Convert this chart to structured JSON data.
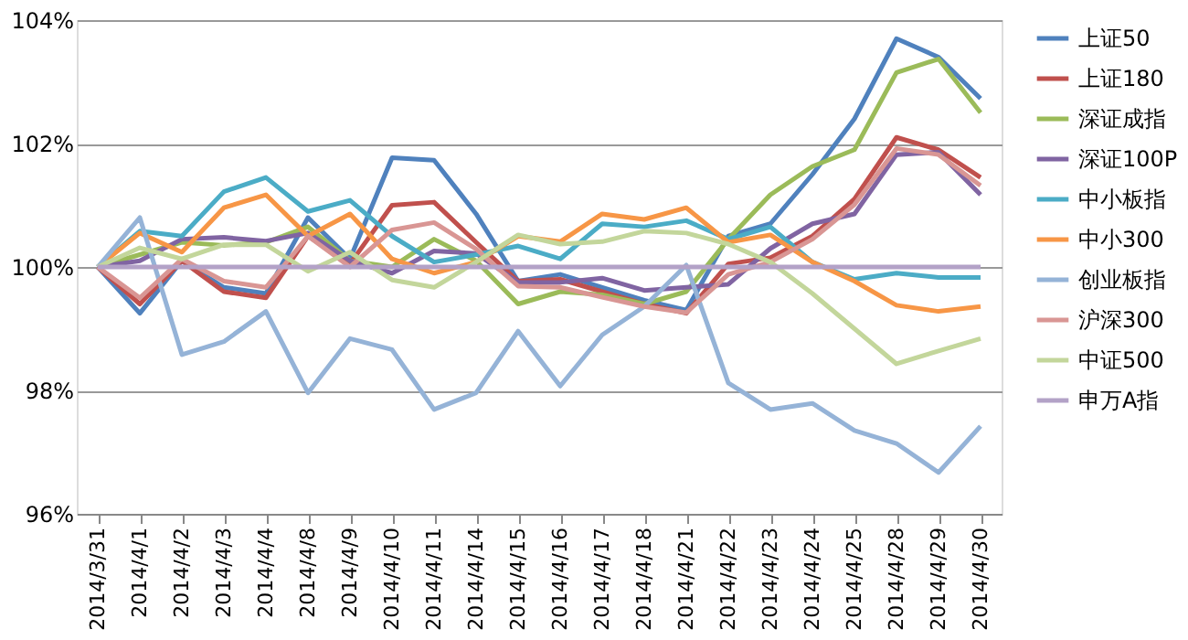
{
  "chart_data": {
    "type": "line",
    "categories": [
      "2014/3/31",
      "2014/4/1",
      "2014/4/2",
      "2014/4/3",
      "2014/4/4",
      "2014/4/8",
      "2014/4/9",
      "2014/4/10",
      "2014/4/11",
      "2014/4/14",
      "2014/4/15",
      "2014/4/16",
      "2014/4/17",
      "2014/4/18",
      "2014/4/21",
      "2014/4/22",
      "2014/4/23",
      "2014/4/24",
      "2014/4/25",
      "2014/4/28",
      "2014/4/29",
      "2014/4/30"
    ],
    "series": [
      {
        "name": "上证50",
        "color": "#4f81bd",
        "values": [
          100,
          99.25,
          100.1,
          99.67,
          99.57,
          100.8,
          100.13,
          101.77,
          101.73,
          100.86,
          99.77,
          99.88,
          99.67,
          99.46,
          99.3,
          100.5,
          100.7,
          101.5,
          102.4,
          103.7,
          103.4,
          102.73
        ]
      },
      {
        "name": "上证180",
        "color": "#c0504d",
        "values": [
          100,
          99.4,
          100.1,
          99.6,
          99.5,
          100.5,
          100.05,
          101.0,
          101.05,
          100.4,
          99.77,
          99.8,
          99.6,
          99.4,
          99.25,
          100.05,
          100.15,
          100.5,
          101.1,
          102.1,
          101.9,
          101.45
        ]
      },
      {
        "name": "深证成指",
        "color": "#9bbb59",
        "values": [
          100,
          100.2,
          100.4,
          100.35,
          100.4,
          100.65,
          100.1,
          100.0,
          100.45,
          100.1,
          99.4,
          99.6,
          99.55,
          99.4,
          99.6,
          100.45,
          101.17,
          101.63,
          101.9,
          103.15,
          103.37,
          102.5
        ]
      },
      {
        "name": "深证100P",
        "color": "#8064a2",
        "values": [
          100,
          100.1,
          100.45,
          100.48,
          100.42,
          100.55,
          100.1,
          99.9,
          100.26,
          100.22,
          99.75,
          99.75,
          99.82,
          99.62,
          99.67,
          99.72,
          100.3,
          100.7,
          100.86,
          101.82,
          101.86,
          101.17
        ]
      },
      {
        "name": "中小板指",
        "color": "#4bacc6",
        "values": [
          100,
          100.58,
          100.5,
          101.22,
          101.45,
          100.9,
          101.08,
          100.5,
          100.08,
          100.2,
          100.34,
          100.13,
          100.7,
          100.65,
          100.75,
          100.45,
          100.65,
          100.08,
          99.8,
          99.9,
          99.83,
          99.83
        ]
      },
      {
        "name": "中小300",
        "color": "#f79646",
        "values": [
          100,
          100.55,
          100.24,
          100.96,
          101.17,
          100.5,
          100.86,
          100.13,
          99.9,
          100.08,
          100.5,
          100.41,
          100.86,
          100.77,
          100.96,
          100.4,
          100.52,
          100.08,
          99.77,
          99.38,
          99.28,
          99.36
        ]
      },
      {
        "name": "创业板指",
        "color": "#95b3d7",
        "values": [
          100,
          100.8,
          98.58,
          98.79,
          99.28,
          97.96,
          98.84,
          98.66,
          97.69,
          97.96,
          98.96,
          98.07,
          98.9,
          99.36,
          100.03,
          98.12,
          97.69,
          97.79,
          97.35,
          97.14,
          96.67,
          97.42
        ]
      },
      {
        "name": "沪深300",
        "color": "#d99694",
        "values": [
          100,
          99.5,
          100.13,
          99.77,
          99.67,
          100.5,
          100.0,
          100.6,
          100.72,
          100.29,
          99.69,
          99.67,
          99.51,
          99.36,
          99.26,
          99.88,
          100.08,
          100.45,
          101.01,
          101.92,
          101.82,
          101.32
        ]
      },
      {
        "name": "中证500",
        "color": "#c3d69b",
        "values": [
          100,
          100.31,
          100.13,
          100.36,
          100.36,
          99.93,
          100.24,
          99.79,
          99.67,
          100.08,
          100.52,
          100.37,
          100.41,
          100.58,
          100.55,
          100.37,
          100.08,
          99.57,
          99.0,
          98.43,
          98.64,
          98.84
        ]
      },
      {
        "name": "申万A指",
        "color": "#b3a2c7",
        "values": [
          100,
          100,
          100,
          100,
          100,
          100,
          100,
          100,
          100,
          100,
          100,
          100,
          100,
          100,
          100,
          100,
          100,
          100,
          100,
          100,
          100,
          100
        ]
      }
    ],
    "ylim": [
      96,
      104
    ],
    "yticks": [
      {
        "value": 96,
        "label": "96%"
      },
      {
        "value": 98,
        "label": "98%"
      },
      {
        "value": 100,
        "label": "100%"
      },
      {
        "value": 102,
        "label": "102%"
      },
      {
        "value": 104,
        "label": "104%"
      }
    ],
    "grid": "y",
    "legend": "right"
  }
}
